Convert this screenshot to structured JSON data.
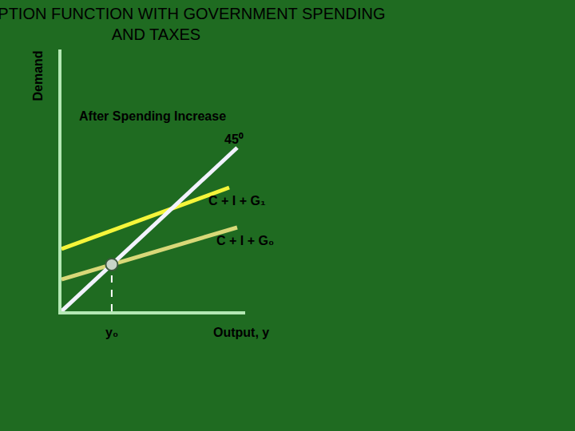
{
  "chart_data": {
    "type": "line",
    "title": "CONSUMPTION FUNCTION WITH GOVERNMENT SPENDING AND TAXES",
    "y_label": "Demand",
    "x_label": "Output, y",
    "xlim": [
      0,
      23
    ],
    "ylim": [
      0,
      32.8
    ],
    "tick_labels": false,
    "grid": false,
    "series": [
      {
        "name": "45⁰",
        "color": "#f2f2ff",
        "x": [
          0,
          22
        ],
        "values": [
          0,
          20.5
        ]
      },
      {
        "name": "C + I + G₁",
        "color": "#f5f53a",
        "x": [
          0,
          21
        ],
        "values": [
          7.8,
          15.5
        ]
      },
      {
        "name": "C + I + G₀",
        "color": "#d8d878",
        "x": [
          0,
          22
        ],
        "values": [
          4,
          10.5
        ]
      }
    ],
    "annotations": [
      {
        "text": "After Spending Increase",
        "x": 2,
        "y": 24.5
      }
    ],
    "equilibrium": {
      "label": "y₀",
      "x": 6.29,
      "y": 5.86,
      "color": "#c8d4c8",
      "marker": "circle",
      "line_style": "dash"
    }
  }
}
